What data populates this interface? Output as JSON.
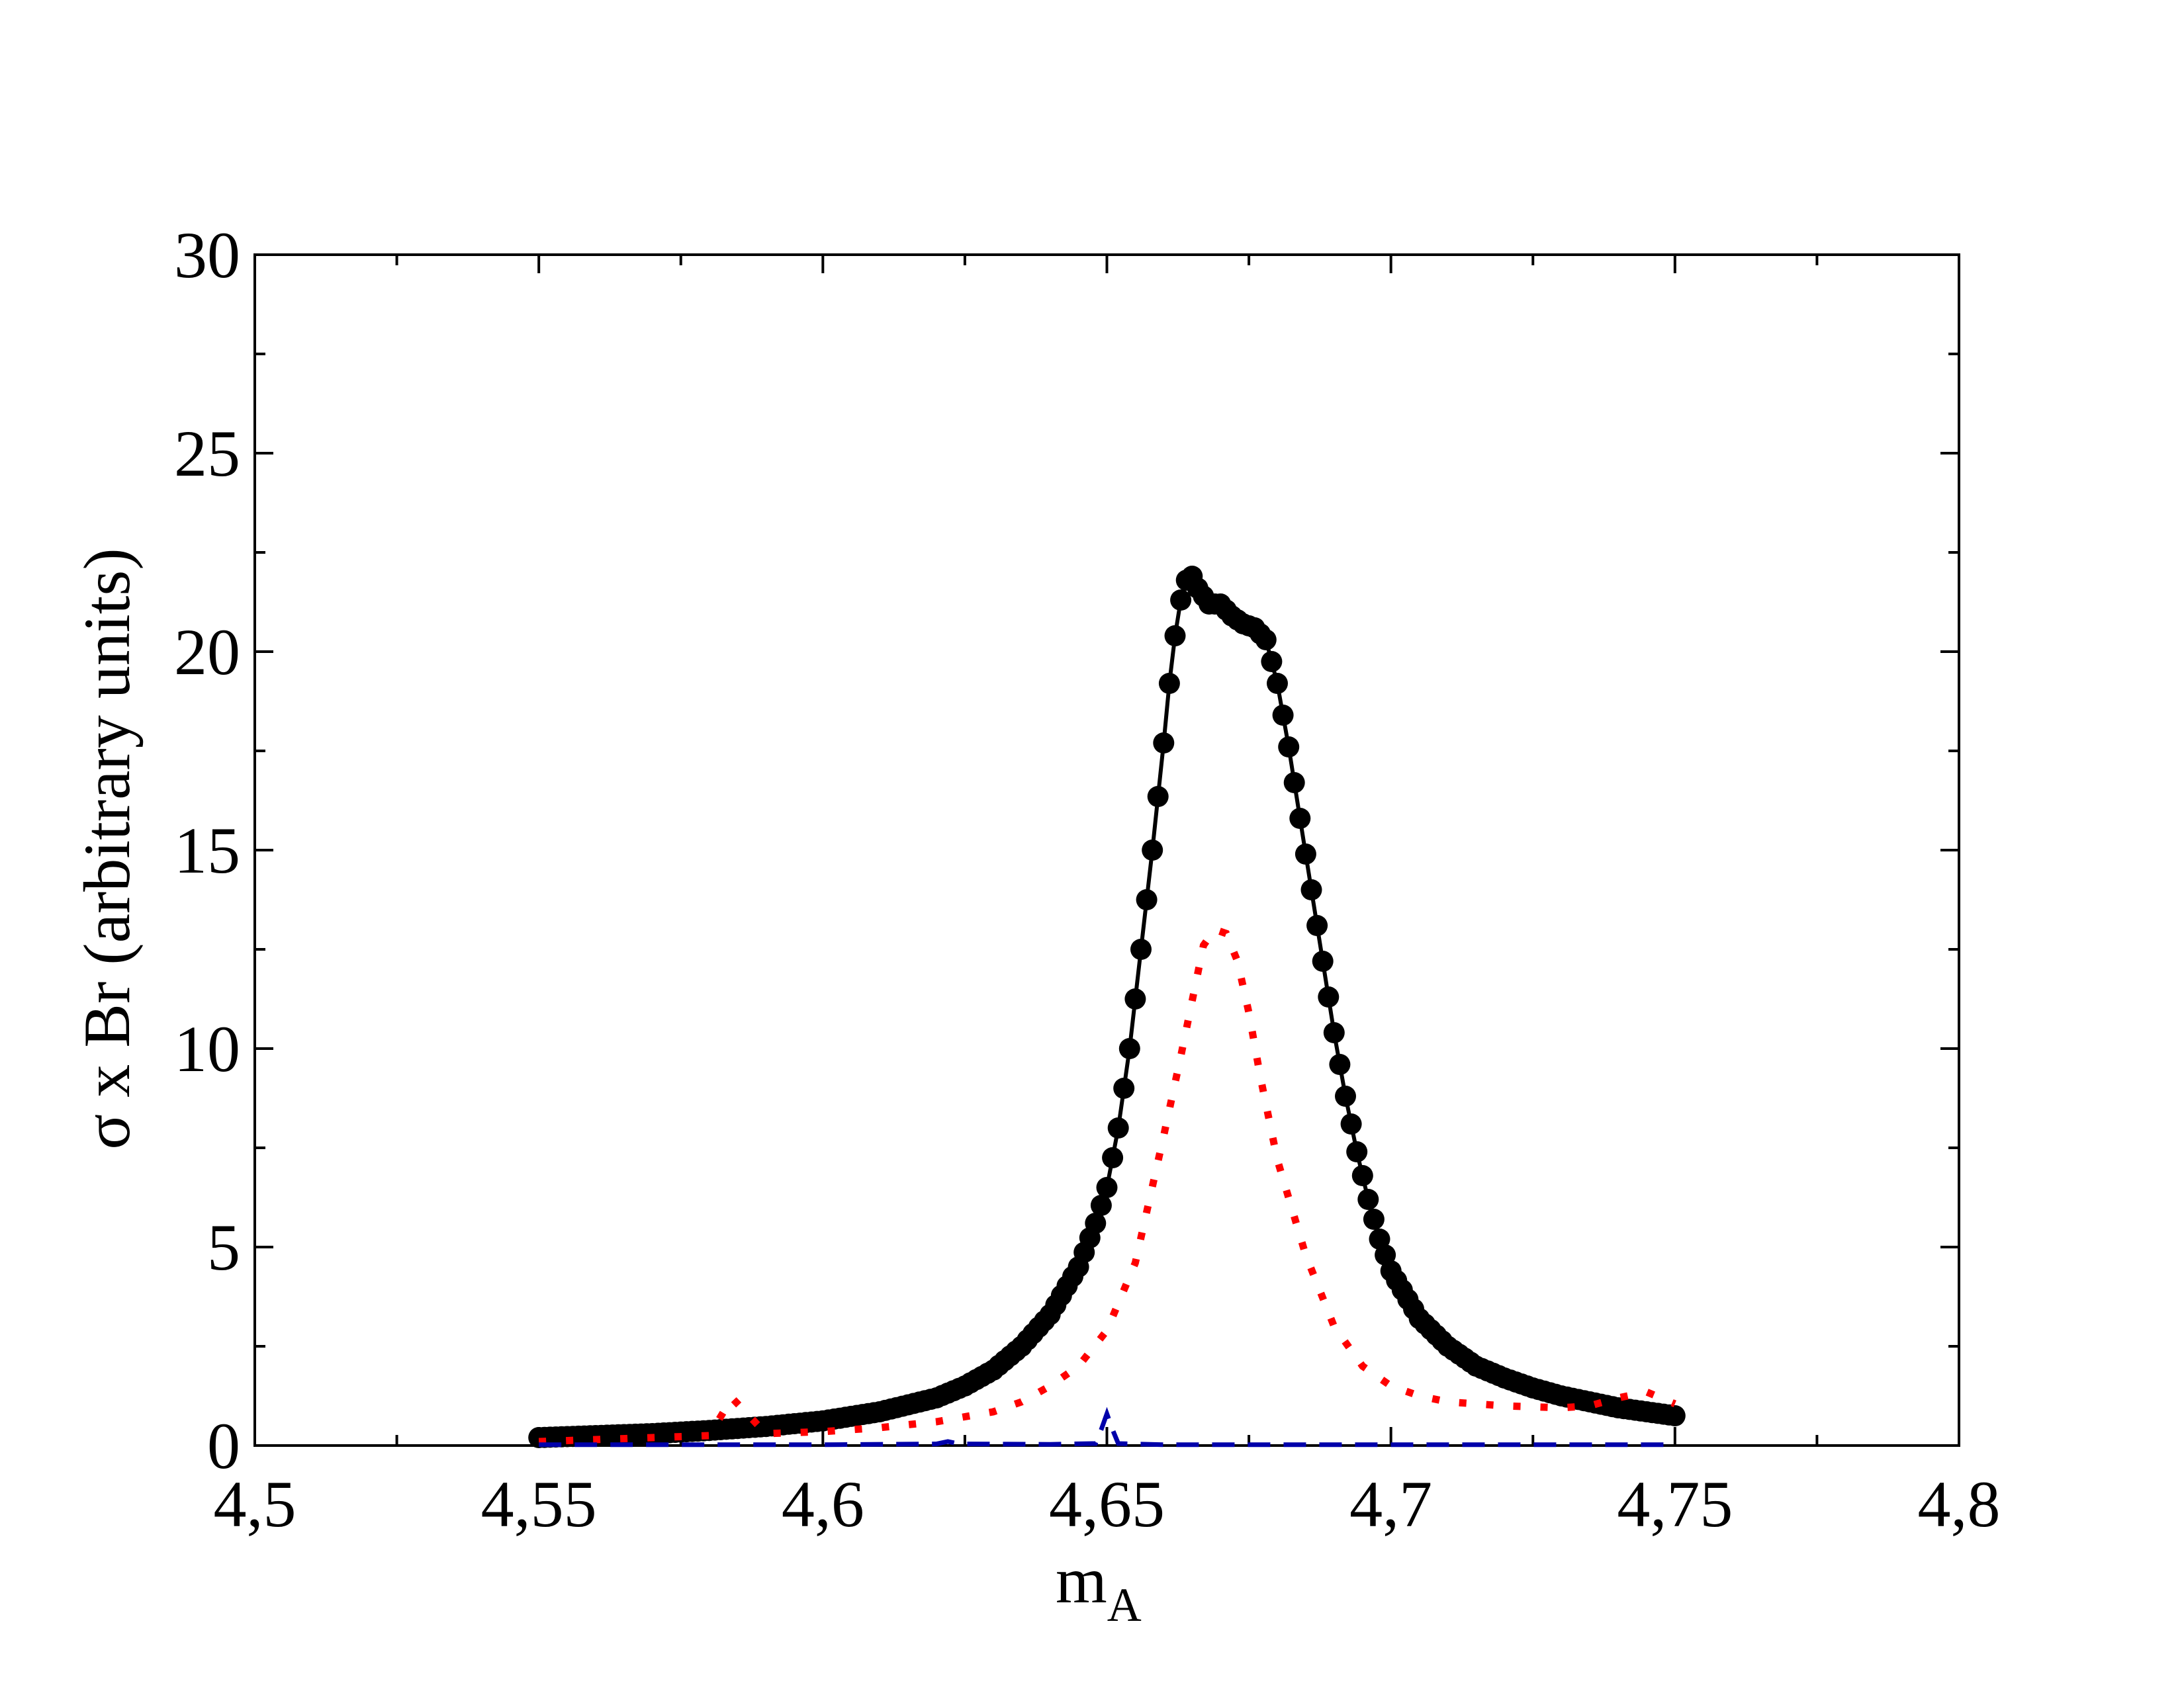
{
  "chart_data": {
    "type": "line",
    "title": "",
    "xlabel": "m",
    "xlabel_sub": "A",
    "ylabel": "σ x Br  (arbitrary units)",
    "xlim": [
      4.5,
      4.8
    ],
    "ylim": [
      0,
      30
    ],
    "x_ticks": [
      {
        "value": 4.5,
        "label": "4,5"
      },
      {
        "value": 4.55,
        "label": "4,55"
      },
      {
        "value": 4.6,
        "label": "4,6"
      },
      {
        "value": 4.65,
        "label": "4,65"
      },
      {
        "value": 4.7,
        "label": "4,7"
      },
      {
        "value": 4.75,
        "label": "4,75"
      },
      {
        "value": 4.8,
        "label": "4,8"
      }
    ],
    "y_ticks": [
      {
        "value": 0,
        "label": "0"
      },
      {
        "value": 5,
        "label": "5"
      },
      {
        "value": 10,
        "label": "10"
      },
      {
        "value": 15,
        "label": "15"
      },
      {
        "value": 20,
        "label": "20"
      },
      {
        "value": 25,
        "label": "25"
      },
      {
        "value": 30,
        "label": "30"
      }
    ],
    "grid": false,
    "legend": "none",
    "series": [
      {
        "style": "solid-circles",
        "color": "#000000",
        "x": [
          4.55,
          4.56,
          4.57,
          4.58,
          4.59,
          4.6,
          4.61,
          4.62,
          4.625,
          4.63,
          4.635,
          4.64,
          4.645,
          4.648,
          4.65,
          4.652,
          4.654,
          4.656,
          4.658,
          4.66,
          4.661,
          4.662,
          4.663,
          4.664,
          4.665,
          4.666,
          4.668,
          4.67,
          4.672,
          4.674,
          4.676,
          4.678,
          4.68,
          4.682,
          4.684,
          4.686,
          4.688,
          4.69,
          4.692,
          4.694,
          4.696,
          4.698,
          4.7,
          4.705,
          4.71,
          4.715,
          4.72,
          4.725,
          4.73,
          4.735,
          4.74,
          4.745,
          4.75
        ],
        "y": [
          0.2,
          0.25,
          0.3,
          0.38,
          0.48,
          0.62,
          0.85,
          1.2,
          1.5,
          1.9,
          2.5,
          3.3,
          4.5,
          5.6,
          6.5,
          8.0,
          10.0,
          12.5,
          15.0,
          17.7,
          19.2,
          20.4,
          21.3,
          21.8,
          21.9,
          21.6,
          21.2,
          21.2,
          20.9,
          20.7,
          20.6,
          20.3,
          19.2,
          17.6,
          15.8,
          14.0,
          12.2,
          10.4,
          8.8,
          7.4,
          6.2,
          5.2,
          4.4,
          3.2,
          2.5,
          2.0,
          1.7,
          1.45,
          1.25,
          1.1,
          0.95,
          0.85,
          0.75
        ]
      },
      {
        "style": "dotted",
        "color": "#ff0000",
        "x": [
          4.55,
          4.56,
          4.57,
          4.58,
          4.584,
          4.59,
          4.6,
          4.61,
          4.62,
          4.63,
          4.635,
          4.64,
          4.645,
          4.65,
          4.655,
          4.66,
          4.663,
          4.665,
          4.667,
          4.669,
          4.671,
          4.673,
          4.675,
          4.677,
          4.68,
          4.685,
          4.69,
          4.695,
          4.7,
          4.705,
          4.71,
          4.72,
          4.73,
          4.735,
          4.74,
          4.745,
          4.75
        ],
        "y": [
          0.1,
          0.15,
          0.2,
          0.25,
          1.2,
          0.3,
          0.35,
          0.45,
          0.6,
          0.85,
          1.1,
          1.5,
          2.0,
          2.9,
          4.6,
          7.8,
          9.8,
          11.2,
          12.6,
          13.0,
          12.9,
          12.2,
          10.9,
          9.3,
          7.2,
          4.8,
          3.0,
          2.0,
          1.5,
          1.25,
          1.1,
          1.0,
          0.95,
          1.0,
          1.2,
          1.35,
          1.05
        ]
      },
      {
        "style": "dashed",
        "color": "#0000aa",
        "x": [
          4.55,
          4.6,
          4.62,
          4.622,
          4.624,
          4.64,
          4.648,
          4.649,
          4.65,
          4.651,
          4.652,
          4.66,
          4.7,
          4.75
        ],
        "y": [
          0.02,
          0.02,
          0.04,
          0.1,
          0.04,
          0.03,
          0.05,
          0.4,
          0.8,
          0.4,
          0.05,
          0.02,
          0.02,
          0.02
        ]
      }
    ]
  }
}
